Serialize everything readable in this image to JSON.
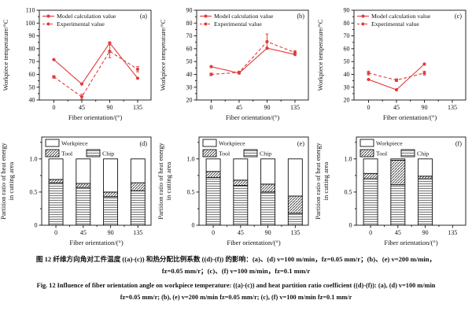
{
  "figure": {
    "accent_color": "#e23b3b",
    "captions": {
      "cn_line1": "图 12  纤维方向角对工件温度 ((a)-(c)) 和热分配比例系数 ((d)-(f)) 的影响：(a)、(d) v=100 m/min，fz=0.05 mm/r；(b)、(e) v=200 m/min，",
      "cn_line2": "fz=0.05 mm/r；(c)、(f) v=100 m/min，fz=0.1 mm/r",
      "en_line1": "Fig. 12  Influence of fiber orientation angle on workpiece temperature: ((a)-(c)) and heat partition ratio coefficient ((d)-(f)): (a), (d) v=100 m/min",
      "en_line2": "fz=0.05 mm/r; (b), (e) v=200 m/min fz=0.05 mm/r; (c), (f) v=100 m/min fz=0.1 mm/r"
    }
  },
  "chart_data": [
    {
      "id": "a",
      "type": "line",
      "panel_label": "(a)",
      "xlabel": "Fiber orientation/(°)",
      "ylabel": "Workpiece temperature/°C",
      "categories": [
        0,
        45,
        90,
        135
      ],
      "ylim": [
        40,
        110
      ],
      "yticks": [
        40,
        50,
        60,
        70,
        80,
        90,
        100,
        110
      ],
      "grid": false,
      "legend_position": "top-left",
      "series": [
        {
          "name": "Model calculation value",
          "style": "solid",
          "color": "#e23b3b",
          "values": [
            71.5,
            52.5,
            84.5,
            57
          ]
        },
        {
          "name": "Experimental value",
          "style": "dashed",
          "color": "#e23b3b",
          "values": [
            58,
            42.5,
            78,
            64
          ],
          "errors": [
            1,
            2,
            5,
            2
          ]
        }
      ]
    },
    {
      "id": "b",
      "type": "line",
      "panel_label": "(b)",
      "xlabel": "Fiber orientation/(°)",
      "ylabel": "Workpiece temperature/°C",
      "categories": [
        0,
        45,
        90,
        135
      ],
      "ylim": [
        20,
        90
      ],
      "yticks": [
        20,
        30,
        40,
        50,
        60,
        70,
        80,
        90
      ],
      "grid": false,
      "legend_position": "top-left",
      "series": [
        {
          "name": "Model calculation value",
          "style": "solid",
          "color": "#e23b3b",
          "values": [
            46,
            41,
            60.5,
            55.5
          ]
        },
        {
          "name": "Experimental value",
          "style": "dashed",
          "color": "#e23b3b",
          "values": [
            40,
            41.5,
            65.5,
            57
          ],
          "errors": [
            1,
            1,
            6,
            1.5
          ]
        }
      ]
    },
    {
      "id": "c",
      "type": "line",
      "panel_label": "(c)",
      "xlabel": "Fiber orientation/(°)",
      "ylabel": "Workpiece temperature/°C",
      "categories": [
        0,
        45,
        90,
        135
      ],
      "ylim": [
        20,
        90
      ],
      "yticks": [
        20,
        30,
        40,
        50,
        60,
        70,
        80,
        90
      ],
      "grid": false,
      "legend_position": "top-left",
      "series": [
        {
          "name": "Model calculation value",
          "style": "solid",
          "color": "#e23b3b",
          "values": [
            36,
            28,
            48
          ]
        },
        {
          "name": "Experimental value",
          "style": "dashed",
          "color": "#e23b3b",
          "values": [
            41,
            35.5,
            41
          ],
          "errors": [
            1.5,
            1,
            1.5
          ]
        }
      ]
    },
    {
      "id": "d",
      "type": "bar",
      "stacked": true,
      "panel_label": "(d)",
      "xlabel": "Fiber orientation/(°)",
      "ylabel": "Partition ratio of heat energy in cutting area",
      "ylabel_lines": [
        "Partition ratio of heat energy",
        "in cutting area"
      ],
      "categories": [
        0,
        45,
        90,
        135
      ],
      "ylim": [
        0,
        1.33
      ],
      "yticks": [
        0,
        0.5,
        1.0
      ],
      "grid": false,
      "legend_position": "top-left",
      "legend_order": [
        "Workpiece",
        "Tool",
        "Chip"
      ],
      "series": [
        {
          "name": "Chip",
          "pattern": "horizontal-lines",
          "values": [
            0.64,
            0.57,
            0.43,
            0.52
          ]
        },
        {
          "name": "Tool",
          "pattern": "diagonal-hatch",
          "values": [
            0.05,
            0.06,
            0.07,
            0.12
          ]
        },
        {
          "name": "Workpiece",
          "pattern": "none",
          "values": [
            0.31,
            0.37,
            0.5,
            0.36
          ]
        }
      ]
    },
    {
      "id": "e",
      "type": "bar",
      "stacked": true,
      "panel_label": "(e)",
      "xlabel": "Fiber orientation/(°)",
      "ylabel": "Partition ratio of heat energy in cutting area",
      "ylabel_lines": [
        "Partition ratio of heat energy",
        "in cutting area"
      ],
      "categories": [
        0,
        45,
        90,
        135
      ],
      "ylim": [
        0,
        1.33
      ],
      "yticks": [
        0,
        0.5,
        1.0
      ],
      "grid": false,
      "legend_position": "top-left",
      "legend_order": [
        "Workpiece",
        "Tool",
        "Chip"
      ],
      "series": [
        {
          "name": "Chip",
          "pattern": "horizontal-lines",
          "values": [
            0.72,
            0.6,
            0.5,
            0.18
          ]
        },
        {
          "name": "Tool",
          "pattern": "diagonal-hatch",
          "values": [
            0.09,
            0.08,
            0.12,
            0.26
          ]
        },
        {
          "name": "Workpiece",
          "pattern": "none",
          "values": [
            0.19,
            0.32,
            0.38,
            0.56
          ]
        }
      ]
    },
    {
      "id": "f",
      "type": "bar",
      "stacked": true,
      "panel_label": "(f)",
      "xlabel": "Fiber orientation/(°)",
      "ylabel": "Partition ratio of heat energy in cutting area",
      "ylabel_lines": [
        "Partition ratio of heat energy",
        "in cutting area"
      ],
      "categories": [
        0,
        45,
        90,
        135
      ],
      "ylim": [
        0,
        1.33
      ],
      "yticks": [
        0,
        0.5,
        1.0
      ],
      "grid": false,
      "legend_position": "top-left",
      "legend_order": [
        "Workpiece",
        "Tool",
        "Chip"
      ],
      "series": [
        {
          "name": "Chip",
          "pattern": "horizontal-lines",
          "values": [
            0.7,
            0.61,
            0.7
          ]
        },
        {
          "name": "Tool",
          "pattern": "diagonal-hatch",
          "values": [
            0.08,
            0.37,
            0.04
          ]
        },
        {
          "name": "Workpiece",
          "pattern": "none",
          "values": [
            0.22,
            0.02,
            0.26
          ]
        }
      ]
    }
  ]
}
